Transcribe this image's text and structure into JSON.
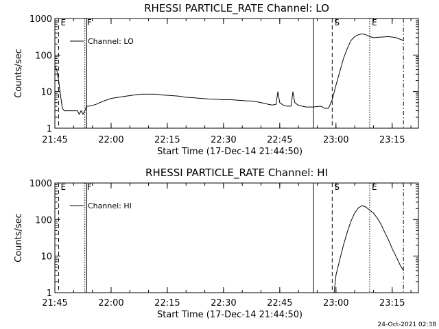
{
  "footer_timestamp": "24-Oct-2021 02:38",
  "chart_data": [
    {
      "type": "line",
      "title": "RHESSI PARTICLE_RATE Channel: LO",
      "xlabel": "Start Time (17-Dec-14 21:44:50)",
      "ylabel": "Counts/sec",
      "y_scale": "log",
      "xlim": [
        "21:45",
        "23:22"
      ],
      "ylim": [
        1,
        1000
      ],
      "x_ticks": [
        "21:45",
        "22:00",
        "22:15",
        "22:30",
        "22:45",
        "23:00",
        "23:15"
      ],
      "y_ticks": [
        "1",
        "10",
        "100",
        "1000"
      ],
      "legend": {
        "placement": "top-left",
        "entries": [
          "Channel: LO"
        ]
      },
      "markers": [
        {
          "label": "E",
          "time": "21:46",
          "style": "dashed"
        },
        {
          "label": "F",
          "time": "21:53",
          "style": "dotted"
        },
        {
          "label": "",
          "time": "21:53:30",
          "style": "solid"
        },
        {
          "label": "",
          "time": "22:54",
          "style": "solid"
        },
        {
          "label": "S",
          "time": "22:59",
          "style": "dashed"
        },
        {
          "label": "E",
          "time": "23:09",
          "style": "dotted"
        },
        {
          "label": "",
          "time": "23:18",
          "style": "dashdot"
        }
      ],
      "series": [
        {
          "x": [
            "21:45:00",
            "21:45:30",
            "21:46:00",
            "21:46:30",
            "21:47:00",
            "21:47:30",
            "21:48:00",
            "21:49:00",
            "21:50:00",
            "21:51:00",
            "21:51:30",
            "21:52:00",
            "21:52:30",
            "21:53:00",
            "21:53:30",
            "21:54:00",
            "21:55:00",
            "21:56:00",
            "21:57:00",
            "21:58:00",
            "21:59:00",
            "22:00:00",
            "22:02:00",
            "22:04:00",
            "22:06:00",
            "22:08:00",
            "22:10:00",
            "22:12:00",
            "22:14:00",
            "22:16:00",
            "22:18:00",
            "22:20:00",
            "22:22:00",
            "22:24:00",
            "22:26:00",
            "22:28:00",
            "22:30:00",
            "22:32:00",
            "22:34:00",
            "22:36:00",
            "22:38:00",
            "22:40:00",
            "22:42:00",
            "22:43:00",
            "22:44:00",
            "22:44:30",
            "22:45:00",
            "22:46:00",
            "22:47:00",
            "22:48:00",
            "22:48:30",
            "22:49:00",
            "22:50:00",
            "22:52:00",
            "22:54:00",
            "22:56:00",
            "22:57:00",
            "22:58:00",
            "22:59:00",
            "23:00:00",
            "23:01:00",
            "23:02:00",
            "23:03:00",
            "23:04:00",
            "23:05:00",
            "23:06:00",
            "23:07:00",
            "23:08:00",
            "23:09:00",
            "23:10:00",
            "23:12:00",
            "23:14:00",
            "23:16:00",
            "23:18:00"
          ],
          "y": [
            50,
            40,
            20,
            8,
            3.5,
            3,
            3,
            3,
            3,
            3,
            2.4,
            3,
            2.4,
            3,
            4,
            4,
            4.2,
            4.5,
            5,
            5.5,
            6,
            6.5,
            7,
            7.5,
            8,
            8.5,
            8.5,
            8.5,
            8,
            7.8,
            7.5,
            7,
            6.8,
            6.5,
            6.3,
            6.2,
            6,
            6,
            5.8,
            5.6,
            5.5,
            5,
            4.5,
            4.3,
            4.5,
            10,
            5,
            4.2,
            4,
            4,
            10,
            5,
            4.2,
            3.8,
            3.8,
            4,
            3.5,
            3.5,
            6,
            15,
            35,
            80,
            150,
            250,
            320,
            360,
            380,
            360,
            320,
            300,
            310,
            320,
            300,
            250
          ]
        }
      ]
    },
    {
      "type": "line",
      "title": "RHESSI PARTICLE_RATE Channel: HI",
      "xlabel": "Start Time (17-Dec-14 21:44:50)",
      "ylabel": "Counts/sec",
      "y_scale": "log",
      "xlim": [
        "21:45",
        "23:22"
      ],
      "ylim": [
        1,
        1000
      ],
      "x_ticks": [
        "21:45",
        "22:00",
        "22:15",
        "22:30",
        "22:45",
        "23:00",
        "23:15"
      ],
      "y_ticks": [
        "1",
        "10",
        "100",
        "1000"
      ],
      "legend": {
        "placement": "top-left",
        "entries": [
          "Channel: HI"
        ]
      },
      "markers": [
        {
          "label": "E",
          "time": "21:46",
          "style": "dashed"
        },
        {
          "label": "F",
          "time": "21:53",
          "style": "dotted"
        },
        {
          "label": "",
          "time": "21:53:30",
          "style": "solid"
        },
        {
          "label": "",
          "time": "22:54",
          "style": "solid"
        },
        {
          "label": "S",
          "time": "22:59",
          "style": "dashed"
        },
        {
          "label": "E",
          "time": "23:09",
          "style": "dotted"
        },
        {
          "label": "",
          "time": "23:18",
          "style": "dashdot"
        }
      ],
      "series": [
        {
          "x": [
            "22:59:30",
            "23:00:00",
            "23:01:00",
            "23:02:00",
            "23:03:00",
            "23:04:00",
            "23:05:00",
            "23:06:00",
            "23:07:00",
            "23:08:00",
            "23:09:00",
            "23:10:00",
            "23:11:00",
            "23:12:00",
            "23:13:00",
            "23:14:00",
            "23:15:00",
            "23:16:00",
            "23:17:00",
            "23:18:00"
          ],
          "y": [
            1,
            3,
            8,
            20,
            45,
            90,
            150,
            210,
            240,
            220,
            180,
            150,
            110,
            75,
            45,
            28,
            16,
            10,
            6,
            4
          ]
        }
      ]
    }
  ]
}
